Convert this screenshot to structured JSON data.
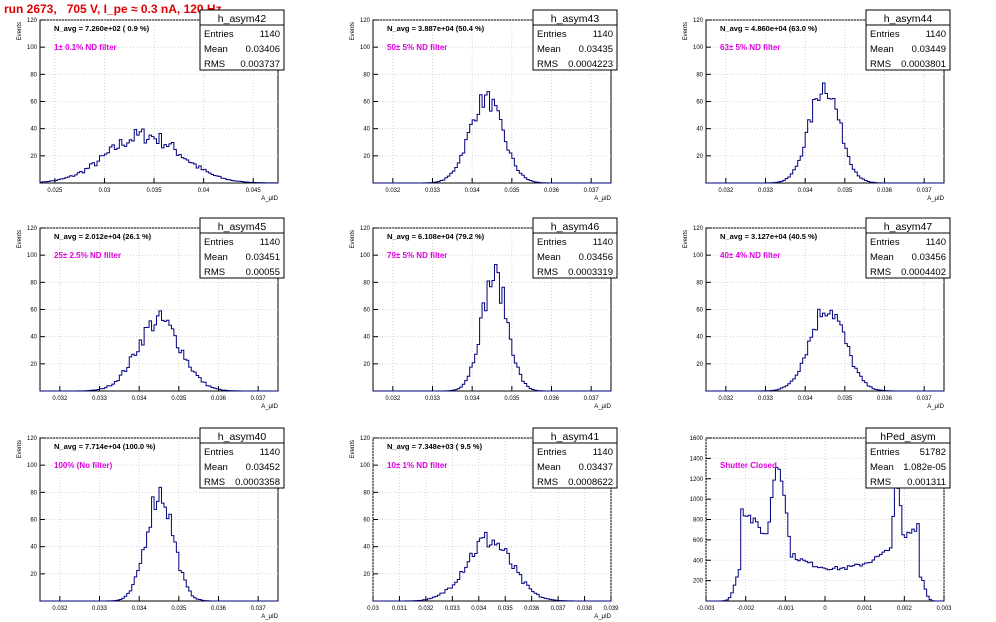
{
  "header": {
    "title": "run 2673,   705 V, I_pe ≈ 0.3 nA, 120 Hz"
  },
  "colors": {
    "title": "#e00000",
    "annotation": "#e000e0",
    "histogram": "#000080",
    "grid": "#cccccc"
  },
  "stats_labels": {
    "entries": "Entries",
    "mean": "Mean",
    "rms": "RMS"
  },
  "chart_data": [
    {
      "type": "histogram",
      "name": "h_asym42",
      "xlabel": "A_μID",
      "ylabel": "Events",
      "navg": "N_avg = 7.260e+02 ( 0.9 %)",
      "filter": "1± 0.1% ND filter",
      "entries": "1140",
      "mean": "0.03406",
      "rms": "0.003737",
      "xlim": [
        0.0235,
        0.0475
      ],
      "ylim": [
        0,
        120
      ],
      "xticks": [
        0.025,
        0.03,
        0.035,
        0.04,
        0.045
      ],
      "xtick_labels": [
        "0.025",
        "0.03",
        "0.035",
        "0.04",
        "0.045"
      ],
      "yticks": [
        20,
        40,
        60,
        80,
        100,
        120
      ],
      "ytick_labels": [
        "20",
        "40",
        "60",
        "80",
        "100",
        "120"
      ],
      "dist": {
        "type": "gauss",
        "mu": 0.034,
        "sigma": 0.0037,
        "peak": 35,
        "amp_jitter": 0.18
      }
    },
    {
      "type": "histogram",
      "name": "h_asym43",
      "xlabel": "A_μID",
      "ylabel": "Events",
      "navg": "N_avg = 3.887e+04 (50.4 %)",
      "filter": "50± 5% ND filter",
      "entries": "1140",
      "mean": "0.03435",
      "rms": "0.0004223",
      "xlim": [
        0.0315,
        0.0375
      ],
      "ylim": [
        0,
        120
      ],
      "xticks": [
        0.032,
        0.033,
        0.034,
        0.035,
        0.036,
        0.037
      ],
      "xtick_labels": [
        "0.032",
        "0.033",
        "0.034",
        "0.035",
        "0.036",
        "0.037"
      ],
      "yticks": [
        20,
        40,
        60,
        80,
        100,
        120
      ],
      "ytick_labels": [
        "20",
        "40",
        "60",
        "80",
        "100",
        "120"
      ],
      "dist": {
        "type": "gauss",
        "mu": 0.03435,
        "sigma": 0.00042,
        "peak": 62,
        "amp_jitter": 0.12
      }
    },
    {
      "type": "histogram",
      "name": "h_asym44",
      "xlabel": "A_μID",
      "ylabel": "Events",
      "navg": "N_avg = 4.860e+04 (63.0 %)",
      "filter": "63± 5% ND filter",
      "entries": "1140",
      "mean": "0.03449",
      "rms": "0.0003801",
      "xlim": [
        0.0315,
        0.0375
      ],
      "ylim": [
        0,
        120
      ],
      "xticks": [
        0.032,
        0.033,
        0.034,
        0.035,
        0.036,
        0.037
      ],
      "xtick_labels": [
        "0.032",
        "0.033",
        "0.034",
        "0.035",
        "0.036",
        "0.037"
      ],
      "yticks": [
        20,
        40,
        60,
        80,
        100,
        120
      ],
      "ytick_labels": [
        "20",
        "40",
        "60",
        "80",
        "100",
        "120"
      ],
      "dist": {
        "type": "gauss",
        "mu": 0.03449,
        "sigma": 0.00038,
        "peak": 72,
        "amp_jitter": 0.12
      }
    },
    {
      "type": "histogram",
      "name": "h_asym45",
      "xlabel": "A_μID",
      "ylabel": "Events",
      "navg": "N_avg = 2.012e+04 (26.1 %)",
      "filter": "25± 2.5% ND filter",
      "entries": "1140",
      "mean": "0.03451",
      "rms": "0.00055",
      "xlim": [
        0.0315,
        0.0375
      ],
      "ylim": [
        0,
        120
      ],
      "xticks": [
        0.032,
        0.033,
        0.034,
        0.035,
        0.036,
        0.037
      ],
      "xtick_labels": [
        "0.032",
        "0.033",
        "0.034",
        "0.035",
        "0.036",
        "0.037"
      ],
      "yticks": [
        20,
        40,
        60,
        80,
        100,
        120
      ],
      "ytick_labels": [
        "20",
        "40",
        "60",
        "80",
        "100",
        "120"
      ],
      "dist": {
        "type": "gauss",
        "mu": 0.0345,
        "sigma": 0.00055,
        "peak": 52,
        "amp_jitter": 0.15
      }
    },
    {
      "type": "histogram",
      "name": "h_asym46",
      "xlabel": "A_μID",
      "ylabel": "Events",
      "navg": "N_avg = 6.108e+04 (79.2 %)",
      "filter": "79± 5% ND filter",
      "entries": "1140",
      "mean": "0.03456",
      "rms": "0.0003319",
      "xlim": [
        0.0315,
        0.0375
      ],
      "ylim": [
        0,
        120
      ],
      "xticks": [
        0.032,
        0.033,
        0.034,
        0.035,
        0.036,
        0.037
      ],
      "xtick_labels": [
        "0.032",
        "0.033",
        "0.034",
        "0.035",
        "0.036",
        "0.037"
      ],
      "yticks": [
        20,
        40,
        60,
        80,
        100,
        120
      ],
      "ytick_labels": [
        "20",
        "40",
        "60",
        "80",
        "100",
        "120"
      ],
      "dist": {
        "type": "gauss",
        "mu": 0.03456,
        "sigma": 0.00033,
        "peak": 84,
        "amp_jitter": 0.14
      }
    },
    {
      "type": "histogram",
      "name": "h_asym47",
      "xlabel": "A_μID",
      "ylabel": "Events",
      "navg": "N_avg = 3.127e+04 (40.5 %)",
      "filter": "40± 4% ND filter",
      "entries": "1140",
      "mean": "0.03456",
      "rms": "0.0004402",
      "xlim": [
        0.0315,
        0.0375
      ],
      "ylim": [
        0,
        120
      ],
      "xticks": [
        0.032,
        0.033,
        0.034,
        0.035,
        0.036,
        0.037
      ],
      "xtick_labels": [
        "0.032",
        "0.033",
        "0.034",
        "0.035",
        "0.036",
        "0.037"
      ],
      "yticks": [
        20,
        40,
        60,
        80,
        100,
        120
      ],
      "ytick_labels": [
        "20",
        "40",
        "60",
        "80",
        "100",
        "120"
      ],
      "dist": {
        "type": "gauss",
        "mu": 0.03456,
        "sigma": 0.00044,
        "peak": 62,
        "amp_jitter": 0.14
      }
    },
    {
      "type": "histogram",
      "name": "h_asym40",
      "xlabel": "A_μID",
      "ylabel": "Events",
      "navg": "N_avg = 7.714e+04 (100.0 %)",
      "filter": "100% (No filter)",
      "entries": "1140",
      "mean": "0.03452",
      "rms": "0.0003358",
      "xlim": [
        0.0315,
        0.0375
      ],
      "ylim": [
        0,
        120
      ],
      "xticks": [
        0.032,
        0.033,
        0.034,
        0.035,
        0.036,
        0.037
      ],
      "xtick_labels": [
        "0.032",
        "0.033",
        "0.034",
        "0.035",
        "0.036",
        "0.037"
      ],
      "yticks": [
        20,
        40,
        60,
        80,
        100,
        120
      ],
      "ytick_labels": [
        "20",
        "40",
        "60",
        "80",
        "100",
        "120"
      ],
      "dist": {
        "type": "gauss",
        "mu": 0.03452,
        "sigma": 0.00034,
        "peak": 80,
        "amp_jitter": 0.14
      }
    },
    {
      "type": "histogram",
      "name": "h_asym41",
      "xlabel": "A_μID",
      "ylabel": "Events",
      "navg": "N_avg = 7.348e+03 ( 9.5 %)",
      "filter": "10± 1% ND filter",
      "entries": "1140",
      "mean": "0.03437",
      "rms": "0.0008622",
      "xlim": [
        0.03,
        0.039
      ],
      "ylim": [
        0,
        120
      ],
      "xticks": [
        0.03,
        0.031,
        0.032,
        0.033,
        0.034,
        0.035,
        0.036,
        0.037,
        0.038,
        0.039
      ],
      "xtick_labels": [
        "0.03",
        "0.031",
        "0.032",
        "0.033",
        "0.034",
        "0.035",
        "0.036",
        "0.037",
        "0.038",
        "0.039"
      ],
      "yticks": [
        20,
        40,
        60,
        80,
        100,
        120
      ],
      "ytick_labels": [
        "20",
        "40",
        "60",
        "80",
        "100",
        "120"
      ],
      "dist": {
        "type": "gauss",
        "mu": 0.03437,
        "sigma": 0.00086,
        "peak": 45,
        "amp_jitter": 0.18
      }
    },
    {
      "type": "histogram",
      "name": "hPed_asym",
      "xlabel": "",
      "ylabel": "",
      "navg": "",
      "filter": "Shutter Closed",
      "entries": "51782",
      "mean": "1.082e-05",
      "rms": "0.001311",
      "xlim": [
        -0.003,
        0.003
      ],
      "ylim": [
        0,
        1600
      ],
      "xticks": [
        -0.003,
        -0.002,
        -0.001,
        0,
        0.001,
        0.002,
        0.003
      ],
      "xtick_labels": [
        "-0.003",
        "-0.002",
        "-0.001",
        "0",
        "0.001",
        "0.002",
        "0.003"
      ],
      "yticks": [
        200,
        400,
        600,
        800,
        1000,
        1200,
        1400,
        1600
      ],
      "ytick_labels": [
        "200",
        "400",
        "600",
        "800",
        "1000",
        "1200",
        "1400",
        "1600"
      ],
      "dist": {
        "type": "pedestal",
        "amp_jitter": 0.06
      }
    }
  ]
}
